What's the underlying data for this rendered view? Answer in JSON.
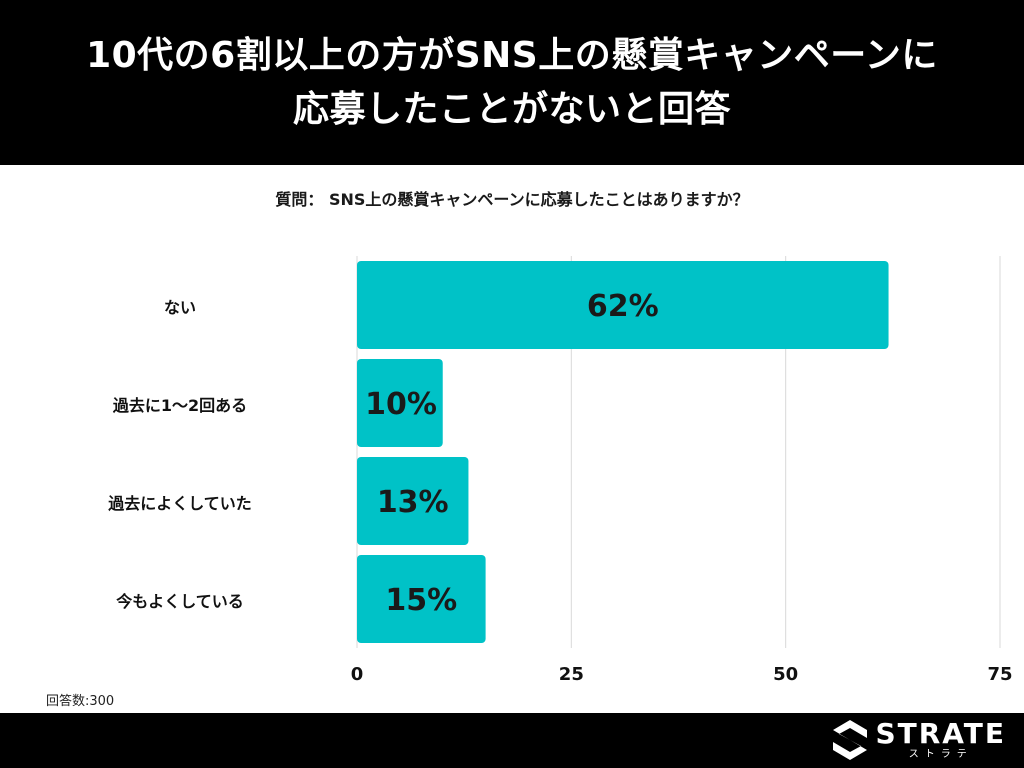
{
  "header": {
    "title_line1": "10代の6割以上の方がSNS上の懸賞キャンペーンに",
    "title_line2": "応募したことがないと回答"
  },
  "question": "質問： SNS上の懸賞キャンペーンに応募したことはありますか？",
  "chart_data": {
    "type": "bar",
    "orientation": "horizontal",
    "categories": [
      "ない",
      "過去に1〜2回ある",
      "過去によくしていた",
      "今もよくしている"
    ],
    "values": [
      62,
      10,
      13,
      15
    ],
    "value_labels": [
      "62%",
      "10%",
      "13%",
      "15%"
    ],
    "xlim": [
      0,
      75
    ],
    "xticks": [
      0,
      25,
      50,
      75
    ],
    "xtick_labels": [
      "0",
      "25",
      "50",
      "75"
    ],
    "grid": true,
    "bar_color": "#00C2C7"
  },
  "footnote": "回答数:300",
  "brand": {
    "name": "STRATE",
    "sub": "ストラテ"
  },
  "colors": {
    "header_bg": "#000000",
    "bar": "#00C2C7",
    "grid": "#d9d9d9"
  }
}
